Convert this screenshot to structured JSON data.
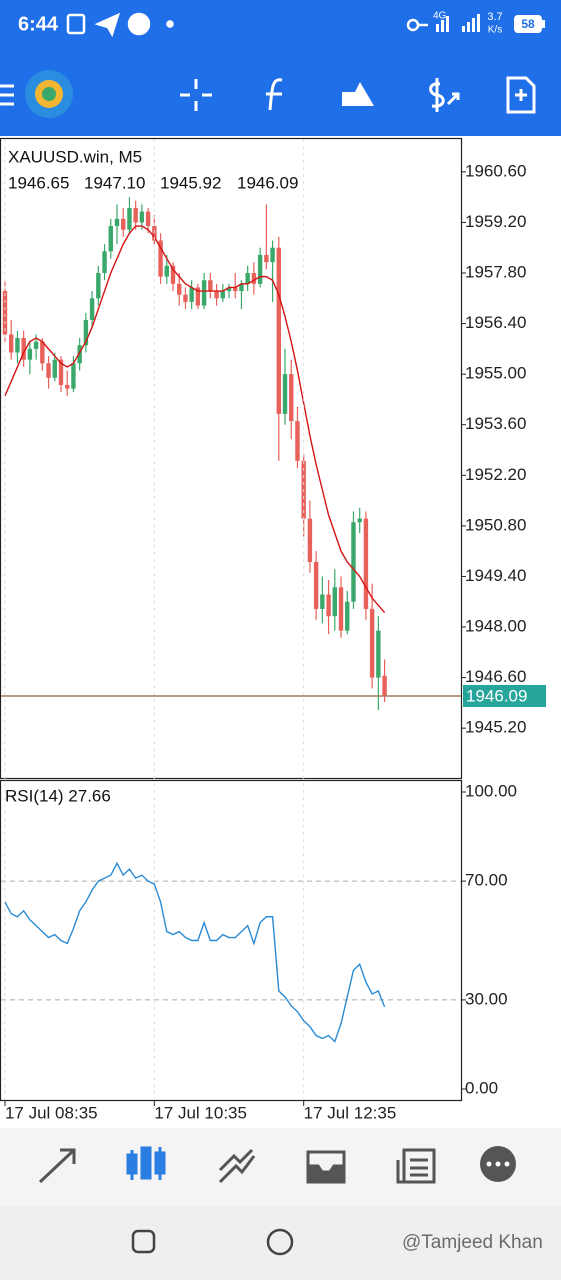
{
  "status_bar": {
    "time": "6:44",
    "network": "4G",
    "speed": "3.7",
    "speed_unit": "K/s",
    "battery": "58"
  },
  "chart_data": [
    {
      "type": "candlestick",
      "title": "XAUUSD.win, M5",
      "quote_labels": [
        "1946.65",
        "1947.10",
        "1945.92",
        "1946.09"
      ],
      "open": [
        1957.3,
        1956.1,
        1955.6,
        1956.0,
        1955.4,
        1955.7,
        1955.9,
        1955.3,
        1954.9,
        1955.4,
        1954.7,
        1954.6,
        1955.3,
        1955.8,
        1956.5,
        1957.1,
        1957.8,
        1958.4,
        1959.1,
        1959.3,
        1959.0,
        1959.6,
        1959.2,
        1959.5,
        1959.1,
        1958.7,
        1957.7,
        1958.0,
        1957.5,
        1957.2,
        1957.0,
        1957.4,
        1956.9,
        1957.6,
        1957.3,
        1957.1,
        1957.3,
        1957.4,
        1957.3,
        1957.5,
        1957.8,
        1957.5,
        1958.3,
        1958.1,
        1958.5,
        1953.9,
        1955.0,
        1953.7,
        1952.6,
        1951.0,
        1949.8,
        1948.5,
        1948.9,
        1948.3,
        1949.1,
        1947.9,
        1948.7,
        1950.9,
        1951.0,
        1948.5,
        1946.6,
        1946.65
      ],
      "high": [
        1957.6,
        1956.5,
        1956.2,
        1956.2,
        1955.9,
        1956.1,
        1956.0,
        1955.5,
        1955.6,
        1955.5,
        1955.1,
        1955.5,
        1956.0,
        1956.7,
        1957.3,
        1958.0,
        1958.6,
        1959.3,
        1959.7,
        1959.6,
        1959.9,
        1959.8,
        1959.7,
        1959.6,
        1959.4,
        1958.9,
        1958.3,
        1958.1,
        1957.8,
        1957.4,
        1957.6,
        1957.5,
        1957.8,
        1957.8,
        1957.5,
        1957.5,
        1957.5,
        1957.8,
        1957.6,
        1958.0,
        1958.1,
        1958.5,
        1959.7,
        1958.7,
        1958.8,
        1955.7,
        1955.4,
        1954.1,
        1952.8,
        1951.5,
        1950.1,
        1949.4,
        1949.3,
        1949.6,
        1949.4,
        1949.0,
        1951.2,
        1951.3,
        1951.2,
        1949.2,
        1948.3,
        1947.1
      ],
      "low": [
        1955.9,
        1955.4,
        1955.3,
        1955.2,
        1955.0,
        1955.4,
        1955.1,
        1954.6,
        1954.8,
        1954.5,
        1954.4,
        1954.5,
        1955.1,
        1955.6,
        1956.3,
        1956.9,
        1957.6,
        1958.2,
        1958.6,
        1958.8,
        1958.9,
        1959.0,
        1959.0,
        1958.9,
        1958.6,
        1957.5,
        1957.5,
        1957.3,
        1956.9,
        1956.8,
        1956.8,
        1956.8,
        1956.8,
        1957.1,
        1956.9,
        1957.0,
        1957.1,
        1957.1,
        1956.8,
        1957.3,
        1957.2,
        1957.4,
        1957.9,
        1957.0,
        1952.6,
        1953.6,
        1953.2,
        1952.4,
        1950.5,
        1949.5,
        1948.2,
        1948.1,
        1947.8,
        1947.9,
        1947.7,
        1947.8,
        1948.5,
        1950.6,
        1948.2,
        1946.3,
        1945.7,
        1945.92
      ],
      "close": [
        1956.1,
        1955.6,
        1956.0,
        1955.4,
        1955.7,
        1955.9,
        1955.3,
        1954.9,
        1955.4,
        1954.7,
        1954.6,
        1955.3,
        1955.8,
        1956.5,
        1957.1,
        1957.8,
        1958.4,
        1959.1,
        1959.3,
        1959.0,
        1959.6,
        1959.2,
        1959.5,
        1959.1,
        1958.7,
        1957.7,
        1958.0,
        1957.5,
        1957.2,
        1957.0,
        1957.4,
        1956.9,
        1957.6,
        1957.3,
        1957.1,
        1957.3,
        1957.4,
        1957.3,
        1957.5,
        1957.8,
        1957.5,
        1958.3,
        1958.1,
        1958.5,
        1953.9,
        1955.0,
        1953.7,
        1952.6,
        1951.0,
        1949.8,
        1948.5,
        1948.9,
        1948.3,
        1949.1,
        1947.9,
        1948.7,
        1950.9,
        1951.0,
        1948.5,
        1946.6,
        1947.9,
        1946.09
      ],
      "up_color": "#3aa86b",
      "down_color": "#e8605a",
      "ma": {
        "color": "#d41414",
        "values": [
          1954.4,
          1954.8,
          1955.2,
          1955.6,
          1955.9,
          1956.0,
          1955.9,
          1955.7,
          1955.5,
          1955.3,
          1955.2,
          1955.3,
          1955.6,
          1955.9,
          1956.3,
          1956.8,
          1957.3,
          1957.8,
          1958.2,
          1958.6,
          1958.9,
          1959.1,
          1959.1,
          1959.0,
          1958.8,
          1958.5,
          1958.2,
          1957.9,
          1957.7,
          1957.5,
          1957.4,
          1957.3,
          1957.3,
          1957.3,
          1957.3,
          1957.3,
          1957.4,
          1957.4,
          1957.5,
          1957.5,
          1957.6,
          1957.7,
          1957.7,
          1957.6,
          1957.2,
          1956.6,
          1955.9,
          1955.1,
          1954.2,
          1953.3,
          1952.5,
          1951.8,
          1951.1,
          1950.6,
          1950.1,
          1949.8,
          1949.6,
          1949.4,
          1949.1,
          1948.8,
          1948.6,
          1948.4
        ]
      },
      "current_price": 1946.09,
      "current_price_color": "#26a69a",
      "current_line_color": "#a8785e",
      "xlim": [
        -0.64,
        73.28
      ],
      "ylim": [
        1943.82,
        1961.51
      ],
      "yticks": [
        {
          "value": 1960.6,
          "label": "1960.60"
        },
        {
          "value": 1959.2,
          "label": "1959.20"
        },
        {
          "value": 1957.8,
          "label": "1957.80"
        },
        {
          "value": 1956.4,
          "label": "1956.40"
        },
        {
          "value": 1955.0,
          "label": "1955.00"
        },
        {
          "value": 1953.6,
          "label": "1953.60"
        },
        {
          "value": 1952.2,
          "label": "1952.20"
        },
        {
          "value": 1950.8,
          "label": "1950.80"
        },
        {
          "value": 1949.4,
          "label": "1949.40"
        },
        {
          "value": 1948.0,
          "label": "1948.00"
        },
        {
          "value": 1946.6,
          "label": "1946.60"
        },
        {
          "value": 1945.2,
          "label": "1945.20"
        }
      ],
      "grid": false
    },
    {
      "type": "line",
      "title": "RSI(14) 27.66",
      "color": "#2a8ad4",
      "values": [
        63,
        59,
        58,
        60,
        57,
        55,
        53,
        51,
        52,
        50,
        49,
        54,
        60,
        63,
        67,
        70,
        71,
        72,
        76,
        72,
        74,
        71,
        72,
        70,
        69,
        63,
        53,
        52,
        53,
        51,
        50,
        50,
        56,
        50,
        50,
        52,
        51,
        51,
        53,
        55,
        49,
        56,
        58,
        58,
        33,
        31,
        28,
        26,
        23,
        21,
        18,
        17,
        18,
        16,
        22,
        31,
        40,
        42,
        36,
        32,
        33,
        27.66
      ],
      "xlim": [
        -0.64,
        73.28
      ],
      "ylim": [
        -3.7,
        103.7
      ],
      "yticks": [
        {
          "value": 100,
          "label": "100.00"
        },
        {
          "value": 70,
          "label": "70.00"
        },
        {
          "value": 30,
          "label": "30.00"
        },
        {
          "value": 0,
          "label": "0.00"
        }
      ],
      "xticks": [
        {
          "value": 0,
          "label": "17 Jul 08:35"
        },
        {
          "value": 24,
          "label": "17 Jul 10:35"
        },
        {
          "value": 48,
          "label": "17 Jul 12:35"
        }
      ],
      "grid": true
    }
  ],
  "watermark": "@Tamjeed Khan"
}
